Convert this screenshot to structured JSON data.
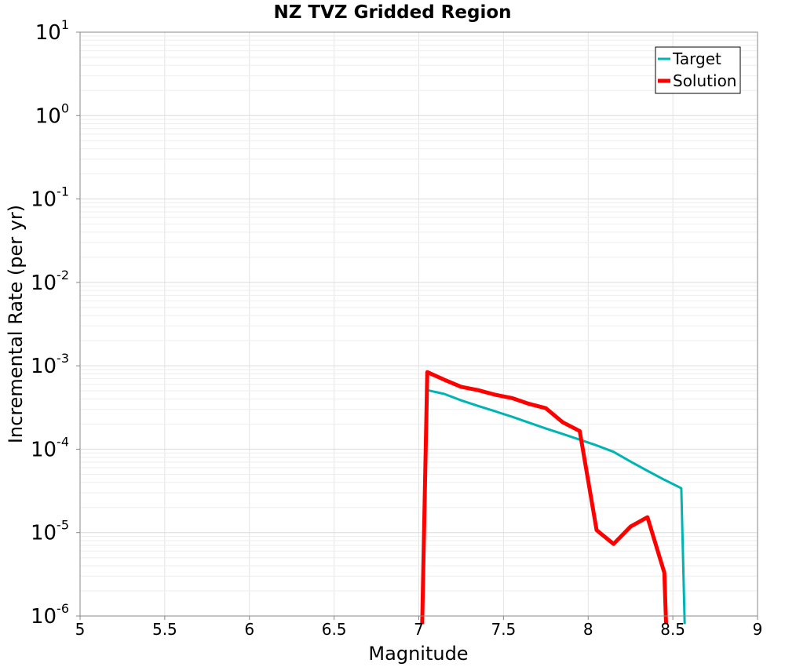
{
  "chart_data": {
    "type": "line",
    "title": "NZ TVZ Gridded Region",
    "xlabel": "Magnitude",
    "ylabel": "Incremental Rate (per yr)",
    "xlim": [
      5,
      9
    ],
    "ylim": [
      1e-06,
      10
    ],
    "yscale": "log",
    "grid": true,
    "legend_position": "top-right",
    "x_ticks": [
      "5",
      "5.5",
      "6",
      "6.5",
      "7",
      "7.5",
      "8",
      "8.5",
      "9"
    ],
    "y_ticks": [
      {
        "base": "10",
        "exp": "1"
      },
      {
        "base": "10",
        "exp": "0"
      },
      {
        "base": "10",
        "exp": "-1"
      },
      {
        "base": "10",
        "exp": "-2"
      },
      {
        "base": "10",
        "exp": "-3"
      },
      {
        "base": "10",
        "exp": "-4"
      },
      {
        "base": "10",
        "exp": "-5"
      },
      {
        "base": "10",
        "exp": "-6"
      }
    ],
    "series": [
      {
        "name": "Target",
        "color": "#00b4b4",
        "x": [
          7.05,
          7.15,
          7.25,
          7.35,
          7.45,
          7.55,
          7.65,
          7.75,
          7.85,
          7.95,
          8.05,
          8.15,
          8.25,
          8.35,
          8.45,
          8.55,
          8.57
        ],
        "y": [
          0.00051,
          0.00046,
          0.000385,
          0.00033,
          0.000285,
          0.000245,
          0.000208,
          0.000177,
          0.000152,
          0.00013,
          0.000111,
          9.3e-05,
          7.1e-05,
          5.5e-05,
          4.3e-05,
          3.4e-05,
          8e-07
        ]
      },
      {
        "name": "Solution",
        "color": "#ff0000",
        "x": [
          7.02,
          7.05,
          7.15,
          7.25,
          7.35,
          7.45,
          7.55,
          7.65,
          7.75,
          7.85,
          7.95,
          8.05,
          8.15,
          8.25,
          8.35,
          8.45,
          8.46
        ],
        "y": [
          8e-07,
          0.00084,
          0.00068,
          0.00056,
          0.00051,
          0.00045,
          0.00041,
          0.00035,
          0.00031,
          0.00021,
          0.000165,
          1.07e-05,
          7.3e-06,
          1.18e-05,
          1.53e-05,
          3.3e-06,
          8e-07
        ]
      }
    ]
  }
}
